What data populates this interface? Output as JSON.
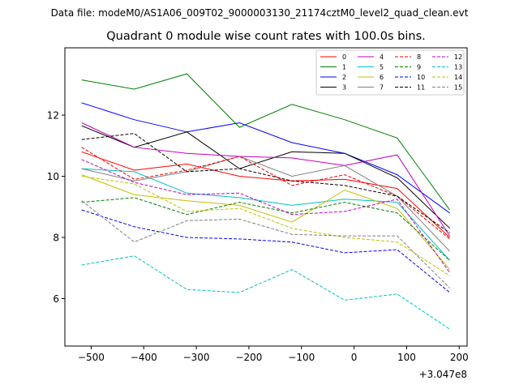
{
  "figure": {
    "suptitle": "Data file: modeM0/AS1A06_009T02_9000003130_21174cztM0_level2_quad_clean.evt"
  },
  "chart_data": {
    "type": "line",
    "title": "Quadrant 0 module wise count rates with 100.0s bins.",
    "xlabel": "",
    "ylabel": "",
    "x_offset_text": "+3.047e8",
    "x_offset": 304700000,
    "x": [
      -518,
      -418,
      -318,
      -218,
      -118,
      -18,
      82,
      182
    ],
    "xlim": [
      -550,
      215
    ],
    "ylim": [
      4.45,
      14.2
    ],
    "xticks": [
      -500,
      -400,
      -300,
      -200,
      -100,
      0,
      100,
      200
    ],
    "xtick_labels": [
      "−500",
      "−400",
      "−300",
      "−200",
      "−100",
      "0",
      "100",
      "200"
    ],
    "yticks": [
      6,
      8,
      10,
      12
    ],
    "ytick_labels": [
      "6",
      "8",
      "10",
      "12"
    ],
    "grid": false,
    "legend_position": "top-right",
    "legend_columns": 4,
    "series": [
      {
        "name": "0",
        "color": "#ff0000",
        "dash": "solid",
        "values": [
          10.8,
          10.2,
          10.4,
          10.0,
          9.85,
          9.9,
          9.6,
          8.0
        ]
      },
      {
        "name": "1",
        "color": "#008000",
        "dash": "solid",
        "values": [
          13.15,
          12.85,
          13.35,
          11.6,
          12.35,
          11.85,
          11.25,
          8.9
        ]
      },
      {
        "name": "2",
        "color": "#0000ff",
        "dash": "solid",
        "values": [
          12.4,
          11.85,
          11.45,
          11.75,
          11.1,
          10.75,
          10.05,
          8.8
        ]
      },
      {
        "name": "3",
        "color": "#000000",
        "dash": "solid",
        "values": [
          11.65,
          10.95,
          11.45,
          10.25,
          10.8,
          10.75,
          9.95,
          8.3
        ]
      },
      {
        "name": "4",
        "color": "#c000c0",
        "dash": "solid",
        "values": [
          11.75,
          10.95,
          10.75,
          10.65,
          10.6,
          10.35,
          10.7,
          8.05
        ]
      },
      {
        "name": "5",
        "color": "#00c0c0",
        "dash": "solid",
        "values": [
          10.25,
          10.15,
          9.45,
          9.3,
          9.05,
          9.25,
          9.15,
          7.25
        ]
      },
      {
        "name": "6",
        "color": "#c0c000",
        "dash": "solid",
        "values": [
          10.05,
          9.4,
          9.2,
          9.05,
          8.5,
          9.55,
          8.95,
          6.95
        ]
      },
      {
        "name": "7",
        "color": "#808080",
        "dash": "solid",
        "values": [
          10.25,
          9.85,
          10.15,
          10.65,
          10.0,
          10.35,
          9.35,
          7.55
        ]
      },
      {
        "name": "8",
        "color": "#ff0000",
        "dash": "dashed",
        "values": [
          10.95,
          9.9,
          10.2,
          10.65,
          9.7,
          10.05,
          9.35,
          7.95
        ]
      },
      {
        "name": "9",
        "color": "#008000",
        "dash": "dashed",
        "values": [
          9.15,
          9.3,
          8.75,
          9.15,
          8.8,
          9.15,
          8.8,
          7.25
        ]
      },
      {
        "name": "10",
        "color": "#0000ff",
        "dash": "dashed",
        "values": [
          8.9,
          8.35,
          8.0,
          7.95,
          7.85,
          7.5,
          7.6,
          6.2
        ]
      },
      {
        "name": "11",
        "color": "#000000",
        "dash": "dashed",
        "values": [
          11.2,
          11.4,
          10.15,
          10.25,
          9.85,
          9.7,
          9.35,
          8.15
        ]
      },
      {
        "name": "12",
        "color": "#c000c0",
        "dash": "dashed",
        "values": [
          10.55,
          9.8,
          9.4,
          9.45,
          8.75,
          8.85,
          9.25,
          6.85
        ]
      },
      {
        "name": "13",
        "color": "#00c0c0",
        "dash": "dashed",
        "values": [
          7.1,
          7.4,
          6.3,
          6.2,
          6.95,
          5.95,
          6.15,
          5.0
        ]
      },
      {
        "name": "14",
        "color": "#c0c000",
        "dash": "dashed",
        "values": [
          10.0,
          9.75,
          8.85,
          8.95,
          8.3,
          8.0,
          7.85,
          6.75
        ]
      },
      {
        "name": "15",
        "color": "#808080",
        "dash": "dashed",
        "values": [
          9.2,
          7.85,
          8.55,
          8.6,
          8.1,
          8.05,
          8.05,
          6.35
        ]
      }
    ]
  }
}
